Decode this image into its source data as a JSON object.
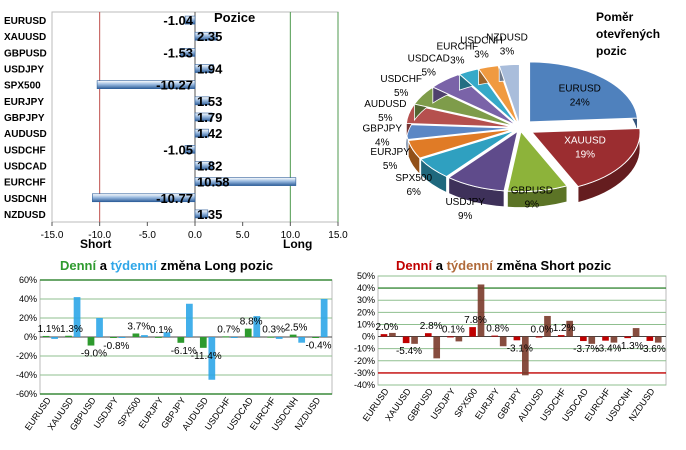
{
  "colors": {
    "grid": "#8fbf8f",
    "short_line": "#c0504d",
    "long_line": "#4f9a4f",
    "bar_blue": "#3a6fb0",
    "bar_green": "#4d8a2a",
    "daily_green": "#2e9a2e",
    "weekly_blue": "#2ea6e8",
    "daily_red": "#c00000",
    "weekly_brown": "#7a3a2a"
  },
  "chart_data": [
    {
      "type": "bar",
      "orientation": "horizontal",
      "title": "Pozice",
      "categories": [
        "EURUSD",
        "XAUUSD",
        "GBPUSD",
        "USDJPY",
        "SPX500",
        "EURJPY",
        "GBPJPY",
        "AUDUSD",
        "USDCHF",
        "USDCAD",
        "EURCHF",
        "USDCNH",
        "NZDUSD"
      ],
      "values": [
        -1.04,
        2.35,
        -1.53,
        1.94,
        -10.27,
        1.53,
        1.79,
        1.42,
        -1.05,
        1.82,
        10.58,
        -10.77,
        1.35
      ],
      "value_labels": [
        "-1.04",
        "2.35",
        "-1.53",
        "1.94",
        "-10.27",
        "1.53",
        "1.79",
        "1.42",
        "-1.05",
        "1.82",
        "10.58",
        "-10.77",
        "1.35"
      ],
      "xlim": [
        -15,
        15
      ],
      "xticks": [
        "-15.0",
        "-10.0",
        "-5.0",
        "0.0",
        "5.0",
        "10.0",
        "15.0"
      ],
      "xtick_values": [
        -15,
        -10,
        -5,
        0,
        5,
        10,
        15
      ],
      "short_label": "Short",
      "long_label": "Long",
      "reference_lines": [
        -10,
        10
      ]
    },
    {
      "type": "pie",
      "title": "Poměr otevřených pozic",
      "title_lines": [
        "Poměr",
        "otevřených",
        "pozic"
      ],
      "slices": [
        {
          "label": "EURUSD",
          "pct": "24%",
          "value": 24,
          "color": "#4f81bd"
        },
        {
          "label": "XAUUSD",
          "pct": "19%",
          "value": 19,
          "color": "#9b2d30"
        },
        {
          "label": "GBPUSD",
          "pct": "9%",
          "value": 9,
          "color": "#8db33a"
        },
        {
          "label": "USDJPY",
          "pct": "9%",
          "value": 9,
          "color": "#5f4b8b"
        },
        {
          "label": "SPX500",
          "pct": "6%",
          "value": 6,
          "color": "#2fa0c0"
        },
        {
          "label": "EURJPY",
          "pct": "5%",
          "value": 5,
          "color": "#e07b26"
        },
        {
          "label": "GBPJPY",
          "pct": "4%",
          "value": 4,
          "color": "#5b87c5"
        },
        {
          "label": "AUDUSD",
          "pct": "5%",
          "value": 5,
          "color": "#b5504e"
        },
        {
          "label": "USDCHF",
          "pct": "5%",
          "value": 5,
          "color": "#7e9c4a"
        },
        {
          "label": "USDCAD",
          "pct": "5%",
          "value": 5,
          "color": "#7a63a8"
        },
        {
          "label": "EURCHF",
          "pct": "3%",
          "value": 3,
          "color": "#36a9c8"
        },
        {
          "label": "USDCNH",
          "pct": "3%",
          "value": 3,
          "color": "#f09a40"
        },
        {
          "label": "NZDUSD",
          "pct": "3%",
          "value": 3,
          "color": "#a9bddb"
        }
      ]
    },
    {
      "type": "bar",
      "title_parts": [
        "Denní",
        " a ",
        "týdenní",
        " změna Long pozic"
      ],
      "categories": [
        "EURUSD",
        "XAUUSD",
        "GBPUSD",
        "USDJPY",
        "SPX500",
        "EURJPY",
        "GBPJPY",
        "AUDUSD",
        "USDCHF",
        "USDCAD",
        "EURCHF",
        "USDCNH",
        "NZDUSD"
      ],
      "series": [
        {
          "name": "Denní",
          "values": [
            1.1,
            1.3,
            -9.0,
            -0.8,
            3.7,
            0.1,
            -6.1,
            -11.4,
            0.7,
            8.8,
            0.3,
            2.5,
            -0.4
          ]
        },
        {
          "name": "týdenní",
          "values": [
            -2,
            42,
            20,
            -1,
            2,
            5,
            35,
            -45,
            0,
            22,
            -2,
            -6,
            40
          ]
        }
      ],
      "data_labels": [
        "1.1%",
        "1.3%",
        "-9.0%",
        "-0.8%",
        "3.7%",
        "0.1%",
        "-6.1%",
        "-11.4%",
        "0.7%",
        "8.8%",
        "0.3%",
        "2.5%",
        "-0.4%"
      ],
      "ylim": [
        -60,
        60
      ],
      "yticks": [
        "60%",
        "40%",
        "20%",
        "0%",
        "-20%",
        "-40%",
        "-60%"
      ],
      "ytick_values": [
        60,
        40,
        20,
        0,
        -20,
        -40,
        -60
      ]
    },
    {
      "type": "bar",
      "title_parts": [
        "Denní",
        " a ",
        "týdenní",
        " změna Short pozic"
      ],
      "categories": [
        "EURUSD",
        "XAUUSD",
        "GBPUSD",
        "USDJPY",
        "SPX500",
        "EURJPY",
        "GBPJPY",
        "AUDUSD",
        "USDCHF",
        "USDCAD",
        "EURCHF",
        "USDCNH",
        "NZDUSD"
      ],
      "series": [
        {
          "name": "Denní",
          "values": [
            2.0,
            -5.4,
            2.8,
            0.1,
            7.8,
            0.8,
            -3.1,
            0.0,
            1.2,
            -3.7,
            -3.4,
            -1.3,
            -3.6
          ]
        },
        {
          "name": "týdenní",
          "values": [
            3,
            -6,
            -18,
            -4,
            43,
            -8,
            -32,
            17,
            13,
            -6,
            -5,
            7,
            -5
          ]
        }
      ],
      "data_labels": [
        "2.0%",
        "-5.4%",
        "2.8%",
        "0.1%",
        "7.8%",
        "0.8%",
        "-3.1%",
        "0.0%",
        "1.2%",
        "-3.7%",
        "-3.4%",
        "-1.3%",
        "-3.6%"
      ],
      "ylim": [
        -40,
        50
      ],
      "yticks": [
        "50%",
        "40%",
        "30%",
        "20%",
        "10%",
        "0%",
        "-10%",
        "-20%",
        "-30%",
        "-40%"
      ],
      "ytick_values": [
        50,
        40,
        30,
        20,
        10,
        0,
        -10,
        -20,
        -30,
        -40
      ]
    }
  ]
}
